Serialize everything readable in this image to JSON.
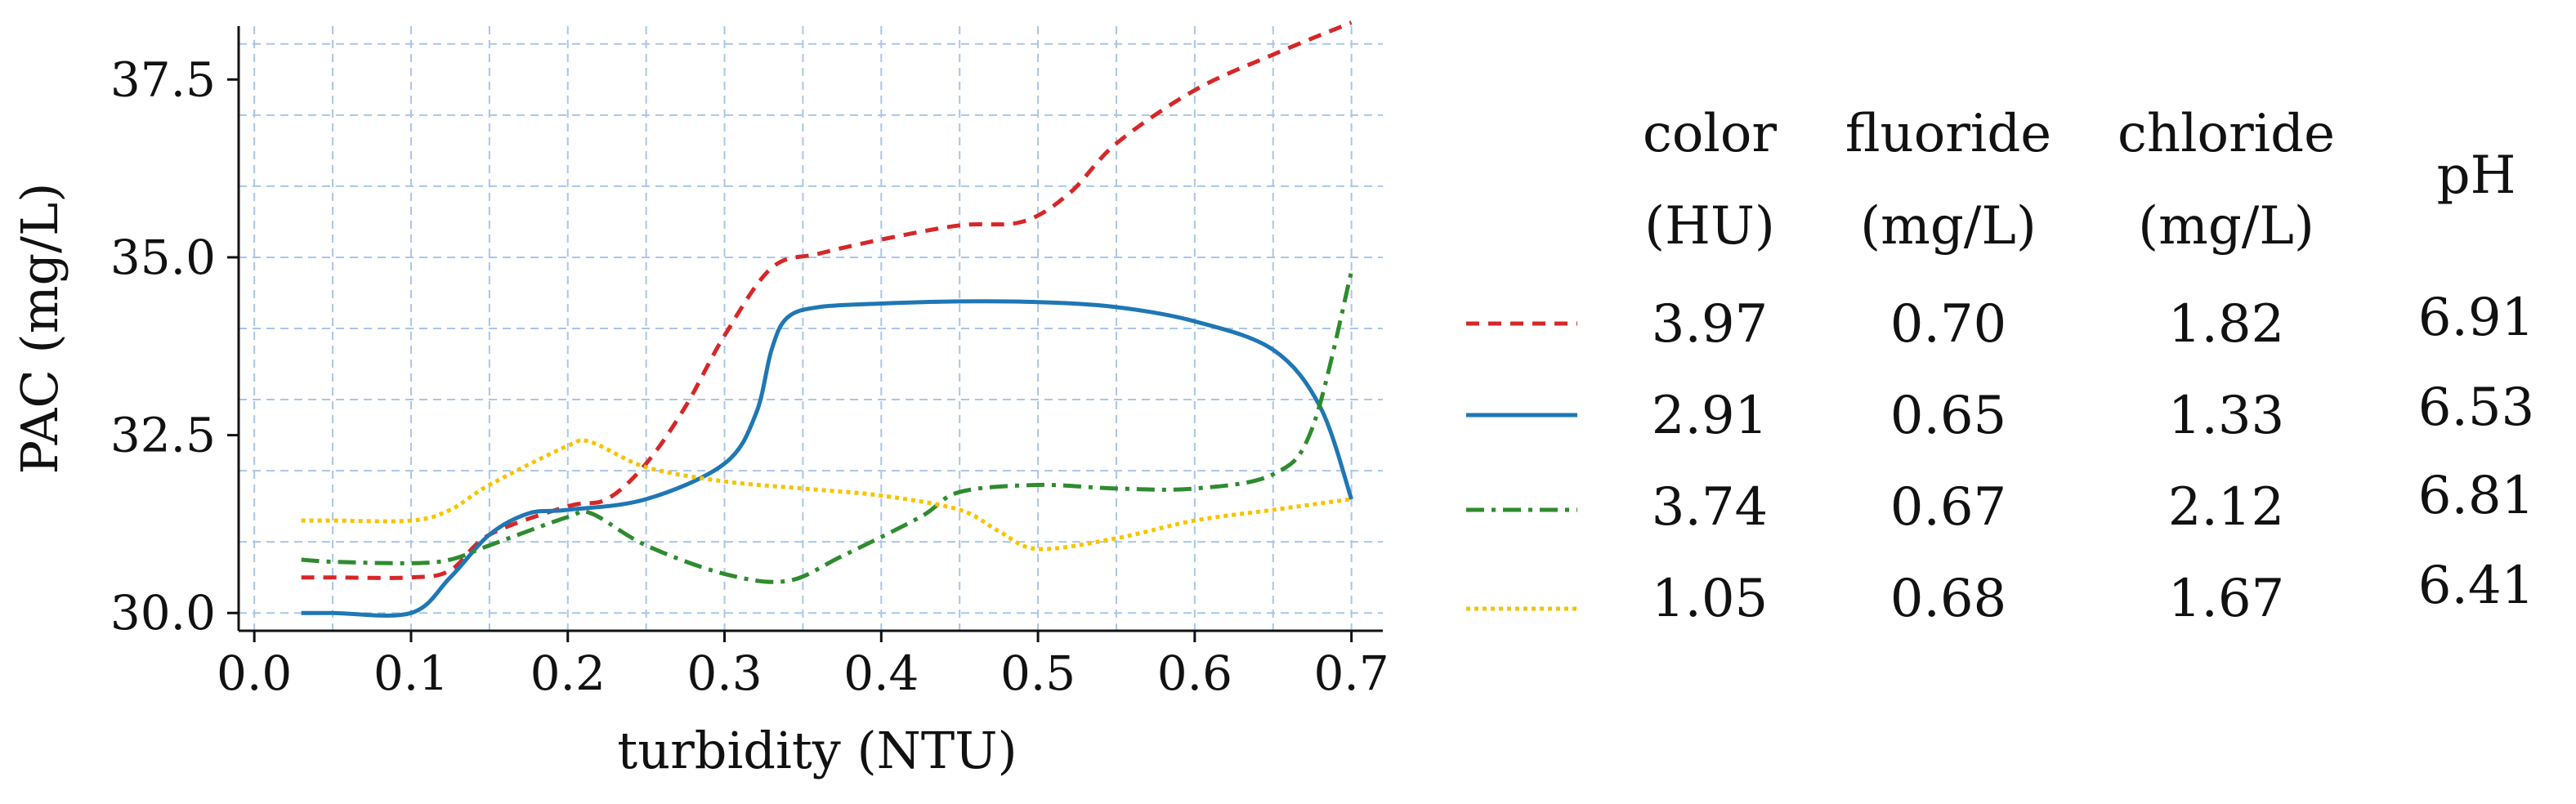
{
  "chart_data": {
    "type": "line",
    "xlabel": "turbidity (NTU)",
    "ylabel": "PAC (mg/L)",
    "xlim": [
      -0.01,
      0.72
    ],
    "ylim": [
      29.75,
      38.25
    ],
    "x_ticks": [
      "0.0",
      "0.1",
      "0.2",
      "0.3",
      "0.4",
      "0.5",
      "0.6",
      "0.7"
    ],
    "y_ticks": [
      "30.0",
      "32.5",
      "35.0",
      "37.5"
    ],
    "grid": true,
    "legend_placement": "right",
    "legend_columns": [
      {
        "line1": "color",
        "line2": "(HU)"
      },
      {
        "line1": "fluoride",
        "line2": "(mg/L)"
      },
      {
        "line1": "chloride",
        "line2": "(mg/L)"
      },
      {
        "line1": "pH",
        "line2": ""
      }
    ],
    "series": [
      {
        "color": "#d62728",
        "dash": "dashed",
        "legend_values": [
          "3.97",
          "0.70",
          "1.82",
          "6.91"
        ],
        "x": [
          0.03,
          0.05,
          0.1,
          0.125,
          0.15,
          0.2,
          0.225,
          0.25,
          0.275,
          0.3,
          0.33,
          0.36,
          0.4,
          0.45,
          0.49,
          0.52,
          0.55,
          0.6,
          0.65,
          0.7
        ],
        "y": [
          30.5,
          30.5,
          30.5,
          30.6,
          31.1,
          31.5,
          31.6,
          32.1,
          32.9,
          33.9,
          34.85,
          35.05,
          35.25,
          35.45,
          35.5,
          35.9,
          36.6,
          37.35,
          37.85,
          38.3
        ]
      },
      {
        "color": "#1f77b4",
        "dash": "solid",
        "legend_values": [
          "2.91",
          "0.65",
          "1.33",
          "6.53"
        ],
        "x": [
          0.03,
          0.05,
          0.1,
          0.125,
          0.15,
          0.175,
          0.2,
          0.25,
          0.3,
          0.32,
          0.33,
          0.34,
          0.36,
          0.4,
          0.45,
          0.5,
          0.55,
          0.6,
          0.65,
          0.68,
          0.7
        ],
        "y": [
          30.0,
          30.0,
          30.0,
          30.5,
          31.1,
          31.4,
          31.45,
          31.6,
          32.1,
          32.8,
          33.7,
          34.15,
          34.3,
          34.35,
          34.38,
          34.37,
          34.3,
          34.1,
          33.7,
          32.9,
          31.6
        ]
      },
      {
        "color": "#2e8b2e",
        "dash": "dashdot",
        "legend_values": [
          "3.74",
          "0.67",
          "2.12",
          "6.81"
        ],
        "x": [
          0.03,
          0.05,
          0.1,
          0.125,
          0.15,
          0.2,
          0.215,
          0.25,
          0.3,
          0.34,
          0.375,
          0.425,
          0.45,
          0.5,
          0.55,
          0.6,
          0.65,
          0.675,
          0.7
        ],
        "y": [
          30.75,
          30.72,
          30.7,
          30.75,
          30.95,
          31.35,
          31.4,
          30.95,
          30.55,
          30.45,
          30.8,
          31.35,
          31.7,
          31.8,
          31.75,
          31.75,
          31.95,
          32.6,
          34.8
        ]
      },
      {
        "color": "#f5c400",
        "dash": "dotted",
        "legend_values": [
          "1.05",
          "0.68",
          "1.67",
          "6.41"
        ],
        "x": [
          0.03,
          0.05,
          0.1,
          0.125,
          0.15,
          0.2,
          0.215,
          0.25,
          0.3,
          0.35,
          0.4,
          0.45,
          0.475,
          0.5,
          0.55,
          0.6,
          0.65,
          0.7
        ],
        "y": [
          31.3,
          31.3,
          31.3,
          31.45,
          31.8,
          32.35,
          32.4,
          32.05,
          31.85,
          31.75,
          31.65,
          31.45,
          31.15,
          30.9,
          31.05,
          31.3,
          31.45,
          31.6
        ]
      }
    ]
  }
}
